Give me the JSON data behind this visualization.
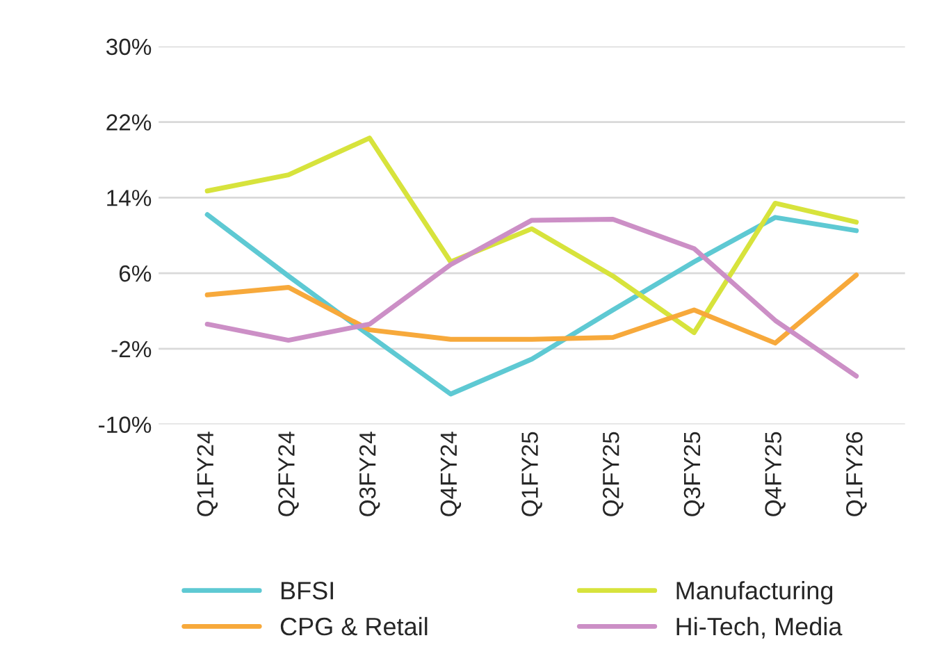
{
  "chart_data": {
    "type": "line",
    "categories": [
      "Q1FY24",
      "Q2FY24",
      "Q3FY24",
      "Q4FY24",
      "Q1FY25",
      "Q2FY25",
      "Q3FY25",
      "Q4FY25",
      "Q1FY26"
    ],
    "series": [
      {
        "name": "BFSI",
        "color": "#5ec9d3",
        "values": [
          12.2,
          5.7,
          -0.6,
          -6.8,
          -3.1,
          2.1,
          7.2,
          11.9,
          10.5
        ]
      },
      {
        "name": "Manufacturing",
        "color": "#d7e33c",
        "values": [
          14.7,
          16.4,
          20.3,
          7.2,
          10.7,
          5.7,
          -0.3,
          13.4,
          11.4
        ]
      },
      {
        "name": "CPG & Retail",
        "color": "#f7a93b",
        "values": [
          3.7,
          4.5,
          0.0,
          -1.0,
          -1.0,
          -0.8,
          2.1,
          -1.4,
          5.8
        ]
      },
      {
        "name": "Hi-Tech, Media",
        "color": "#cc8fc6",
        "values": [
          0.6,
          -1.1,
          0.6,
          6.9,
          11.6,
          11.7,
          8.6,
          1.0,
          -4.9
        ]
      }
    ],
    "ylim": [
      -10,
      30
    ],
    "yticks": [
      {
        "value": -10,
        "label": "-10%"
      },
      {
        "value": -2,
        "label": "-2%"
      },
      {
        "value": 6,
        "label": "6%"
      },
      {
        "value": 14,
        "label": "14%"
      },
      {
        "value": 22,
        "label": "22%"
      },
      {
        "value": 30,
        "label": "30%"
      }
    ],
    "grid": "y",
    "legend": "bottom",
    "marker": "none",
    "line_style": "solid"
  }
}
